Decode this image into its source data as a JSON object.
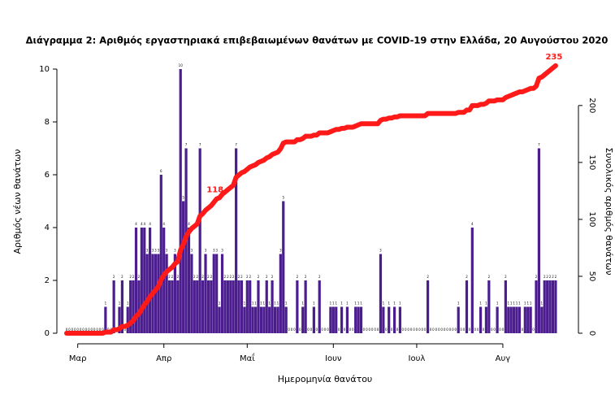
{
  "chart_data": {
    "type": "bar-line",
    "title": "Διάγραμμα 2: Αριθμός εργαστηριακά επιβεβαιωμένων θανάτων με COVID-19 στην Ελλάδα, 20 Αυγούστου 2020",
    "xlabel": "Ημερομηνία θανάτου",
    "ylabel": "Αριθμός νέων θανάτων",
    "y2label": "Συνολικός αριθμός θανάτων",
    "categories": [
      null,
      null,
      null,
      null,
      "Μαρ",
      null,
      null,
      null,
      null,
      null,
      null,
      null,
      null,
      null,
      null,
      null,
      null,
      null,
      null,
      null,
      null,
      null,
      null,
      null,
      null,
      null,
      null,
      null,
      null,
      null,
      null,
      null,
      null,
      null,
      null,
      "Απρ",
      null,
      null,
      null,
      null,
      null,
      null,
      null,
      null,
      null,
      null,
      null,
      null,
      null,
      null,
      null,
      null,
      null,
      null,
      null,
      null,
      null,
      null,
      null,
      null,
      null,
      null,
      null,
      null,
      null,
      "Μαΐ",
      null,
      null,
      null,
      null,
      null,
      null,
      null,
      null,
      null,
      null,
      null,
      null,
      null,
      null,
      null,
      null,
      null,
      null,
      null,
      null,
      null,
      null,
      null,
      null,
      null,
      null,
      null,
      null,
      null,
      null,
      "Ιουν",
      null,
      null,
      null,
      null,
      null,
      null,
      null,
      null,
      null,
      null,
      null,
      null,
      null,
      null,
      null,
      null,
      null,
      null,
      null,
      null,
      null,
      null,
      null,
      null,
      null,
      null,
      null,
      null,
      null,
      "Ιουλ",
      null,
      null,
      null,
      null,
      null,
      null,
      null,
      null,
      null,
      null,
      null,
      null,
      null,
      null,
      null,
      null,
      null,
      null,
      null,
      null,
      null,
      null,
      null,
      null,
      null,
      null,
      null,
      null,
      null,
      null,
      "Αυγ",
      null,
      null,
      null,
      null,
      null,
      null,
      null,
      null,
      null,
      null,
      null,
      null,
      null,
      null,
      null,
      null,
      null,
      null,
      null
    ],
    "series": [
      {
        "name": "Αριθμός νέων θανάτων",
        "color": "#4b1d8f",
        "values": [
          0,
          0,
          0,
          0,
          0,
          0,
          0,
          0,
          0,
          0,
          0,
          0,
          0,
          0,
          1,
          0,
          0,
          2,
          0,
          1,
          2,
          0,
          1,
          2,
          2,
          4,
          2,
          4,
          4,
          3,
          4,
          3,
          3,
          3,
          6,
          4,
          3,
          2,
          2,
          3,
          2,
          10,
          5,
          7,
          4,
          3,
          2,
          2,
          7,
          2,
          3,
          2,
          2,
          3,
          3,
          1,
          3,
          2,
          2,
          2,
          2,
          7,
          2,
          2,
          1,
          2,
          2,
          1,
          1,
          2,
          1,
          1,
          2,
          1,
          2,
          1,
          1,
          3,
          5,
          1,
          0,
          0,
          0,
          2,
          0,
          1,
          2,
          0,
          0,
          1,
          0,
          2,
          0,
          0,
          0,
          1,
          1,
          1,
          0,
          1,
          0,
          1,
          0,
          0,
          1,
          1,
          1,
          0,
          0,
          0,
          0,
          0,
          0,
          3,
          1,
          0,
          1,
          0,
          1,
          0,
          1,
          0,
          0,
          0,
          0,
          0,
          0,
          0,
          0,
          0,
          2,
          0,
          0,
          0,
          0,
          0,
          0,
          0,
          0,
          0,
          0,
          1,
          0,
          0,
          2,
          0,
          4,
          0,
          0,
          1,
          0,
          1,
          2,
          0,
          0,
          1,
          0,
          0,
          2,
          1,
          1,
          1,
          1,
          1,
          0,
          1,
          1,
          1,
          0,
          2,
          7,
          1,
          2,
          2,
          2,
          2,
          2
        ]
      },
      {
        "name": "Συνολικός αριθμός θανάτων",
        "color": "#ff1a1a",
        "axis": "y2",
        "values": [
          0,
          0,
          0,
          0,
          0,
          0,
          0,
          0,
          0,
          0,
          0,
          0,
          0,
          0,
          1,
          1,
          1,
          3,
          3,
          4,
          6,
          6,
          7,
          9,
          11,
          15,
          17,
          21,
          25,
          28,
          32,
          35,
          38,
          41,
          47,
          51,
          54,
          56,
          58,
          61,
          63,
          73,
          78,
          85,
          89,
          92,
          94,
          96,
          103,
          105,
          108,
          110,
          112,
          115,
          118,
          119,
          122,
          124,
          126,
          128,
          130,
          137,
          139,
          141,
          142,
          144,
          146,
          147,
          148,
          150,
          151,
          152,
          154,
          155,
          157,
          158,
          159,
          162,
          167,
          168,
          168,
          168,
          168,
          170,
          170,
          171,
          173,
          173,
          173,
          174,
          174,
          176,
          176,
          176,
          176,
          177,
          178,
          179,
          179,
          180,
          180,
          181,
          181,
          181,
          182,
          183,
          184,
          184,
          184,
          184,
          184,
          184,
          184,
          187,
          188,
          188,
          189,
          189,
          190,
          190,
          191,
          191,
          191,
          191,
          191,
          191,
          191,
          191,
          191,
          191,
          193,
          193,
          193,
          193,
          193,
          193,
          193,
          193,
          193,
          193,
          193,
          194,
          194,
          194,
          196,
          196,
          200,
          200,
          200,
          201,
          201,
          202,
          204,
          204,
          204,
          205,
          205,
          205,
          207,
          208,
          209,
          210,
          211,
          212,
          212,
          213,
          214,
          215,
          215,
          217,
          224,
          225,
          227,
          229,
          231,
          233,
          235
        ],
        "value_labels": [
          null,
          null,
          null,
          null,
          null,
          null,
          null,
          null,
          null,
          null,
          null,
          null,
          null,
          null,
          null,
          null,
          null,
          null,
          null,
          null,
          null,
          null,
          null,
          null,
          null,
          null,
          null,
          null,
          null,
          null,
          null,
          null,
          null,
          null,
          null,
          null,
          null,
          null,
          null,
          null,
          null,
          null,
          null,
          null,
          null,
          null,
          null,
          null,
          null,
          null,
          null,
          null,
          null,
          null,
          "118",
          null,
          null,
          null,
          null,
          null,
          null,
          null,
          null,
          null,
          null,
          null,
          null,
          null,
          null,
          null,
          null,
          null,
          null,
          null,
          null,
          null,
          null,
          null,
          null,
          null,
          null,
          null,
          null,
          null,
          null,
          null,
          null,
          null,
          null,
          null,
          null,
          null,
          null,
          null,
          null,
          null,
          null,
          null,
          null,
          null,
          null,
          null,
          null,
          null,
          null,
          null,
          null,
          null,
          null,
          null,
          null,
          null,
          null,
          null,
          null,
          null,
          null,
          null,
          null,
          null,
          null,
          null,
          null,
          null,
          null,
          null,
          null,
          null,
          null,
          null,
          null,
          null,
          null,
          null,
          null,
          null,
          null,
          null,
          null,
          null,
          null,
          null,
          null,
          null,
          null,
          null,
          null,
          null,
          null,
          null,
          null,
          null,
          null,
          null,
          null,
          null,
          null,
          null,
          null,
          null,
          null,
          null,
          null,
          null,
          null,
          null,
          null,
          null,
          null,
          null,
          null,
          null,
          null,
          null,
          null,
          null,
          "235"
        ]
      }
    ],
    "ylim": [
      0,
      10
    ],
    "yticks": [
      0,
      2,
      4,
      6,
      8,
      10
    ],
    "y2lim": [
      0,
      232
    ],
    "y2ticks": [
      0,
      50,
      100,
      150,
      200
    ],
    "grid": false
  }
}
